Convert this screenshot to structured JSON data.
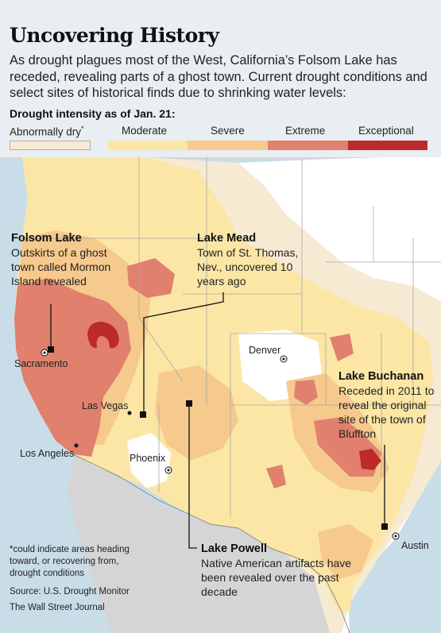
{
  "title": "Uncovering History",
  "intro": "As drought plagues most of the West, California’s Folsom Lake has receded, revealing parts of a ghost town. Current drought conditions and select sites of historical finds due to shrinking water levels:",
  "legend": {
    "title": "Drought intensity as of Jan. 21:",
    "categories": [
      {
        "label": "Abnormally dry",
        "marker": "*",
        "color": "#f6ead2"
      },
      {
        "label": "Moderate",
        "color": "#fbe6a6"
      },
      {
        "label": "Severe",
        "color": "#f6c98c"
      },
      {
        "label": "Extreme",
        "color": "#e0806d"
      },
      {
        "label": "Exceptional",
        "color": "#bc2a2a"
      }
    ]
  },
  "annotations": {
    "folsom": {
      "name": "Folsom Lake",
      "text": "Outskirts of a ghost town called Mormon Island revealed"
    },
    "mead": {
      "name": "Lake Mead",
      "text": "Town of St. Thomas, Nev., uncovered 10 years ago"
    },
    "buchanan": {
      "name": "Lake Buchanan",
      "text": "Receded in 2011 to reveal the original site of the town of Bluffton"
    },
    "powell": {
      "name": "Lake Powell",
      "text": "Native American artifacts have been revealed over the past decade"
    }
  },
  "cities": {
    "sacramento": "Sacramento",
    "las_vegas": "Las Vegas",
    "los_angeles": "Los Angeles",
    "phoenix": "Phoenix",
    "denver": "Denver",
    "austin": "Austin"
  },
  "footnote": "*could indicate areas heading toward, or recovering from, drought conditions",
  "source": "Source: U.S. Drought Monitor",
  "publisher": "The Wall Street Journal",
  "colors": {
    "water": "#c9dde8",
    "land_other": "#d3d3d3",
    "no_drought": "#ffffff",
    "border": "#9a9a9a",
    "leader": "#111111"
  }
}
